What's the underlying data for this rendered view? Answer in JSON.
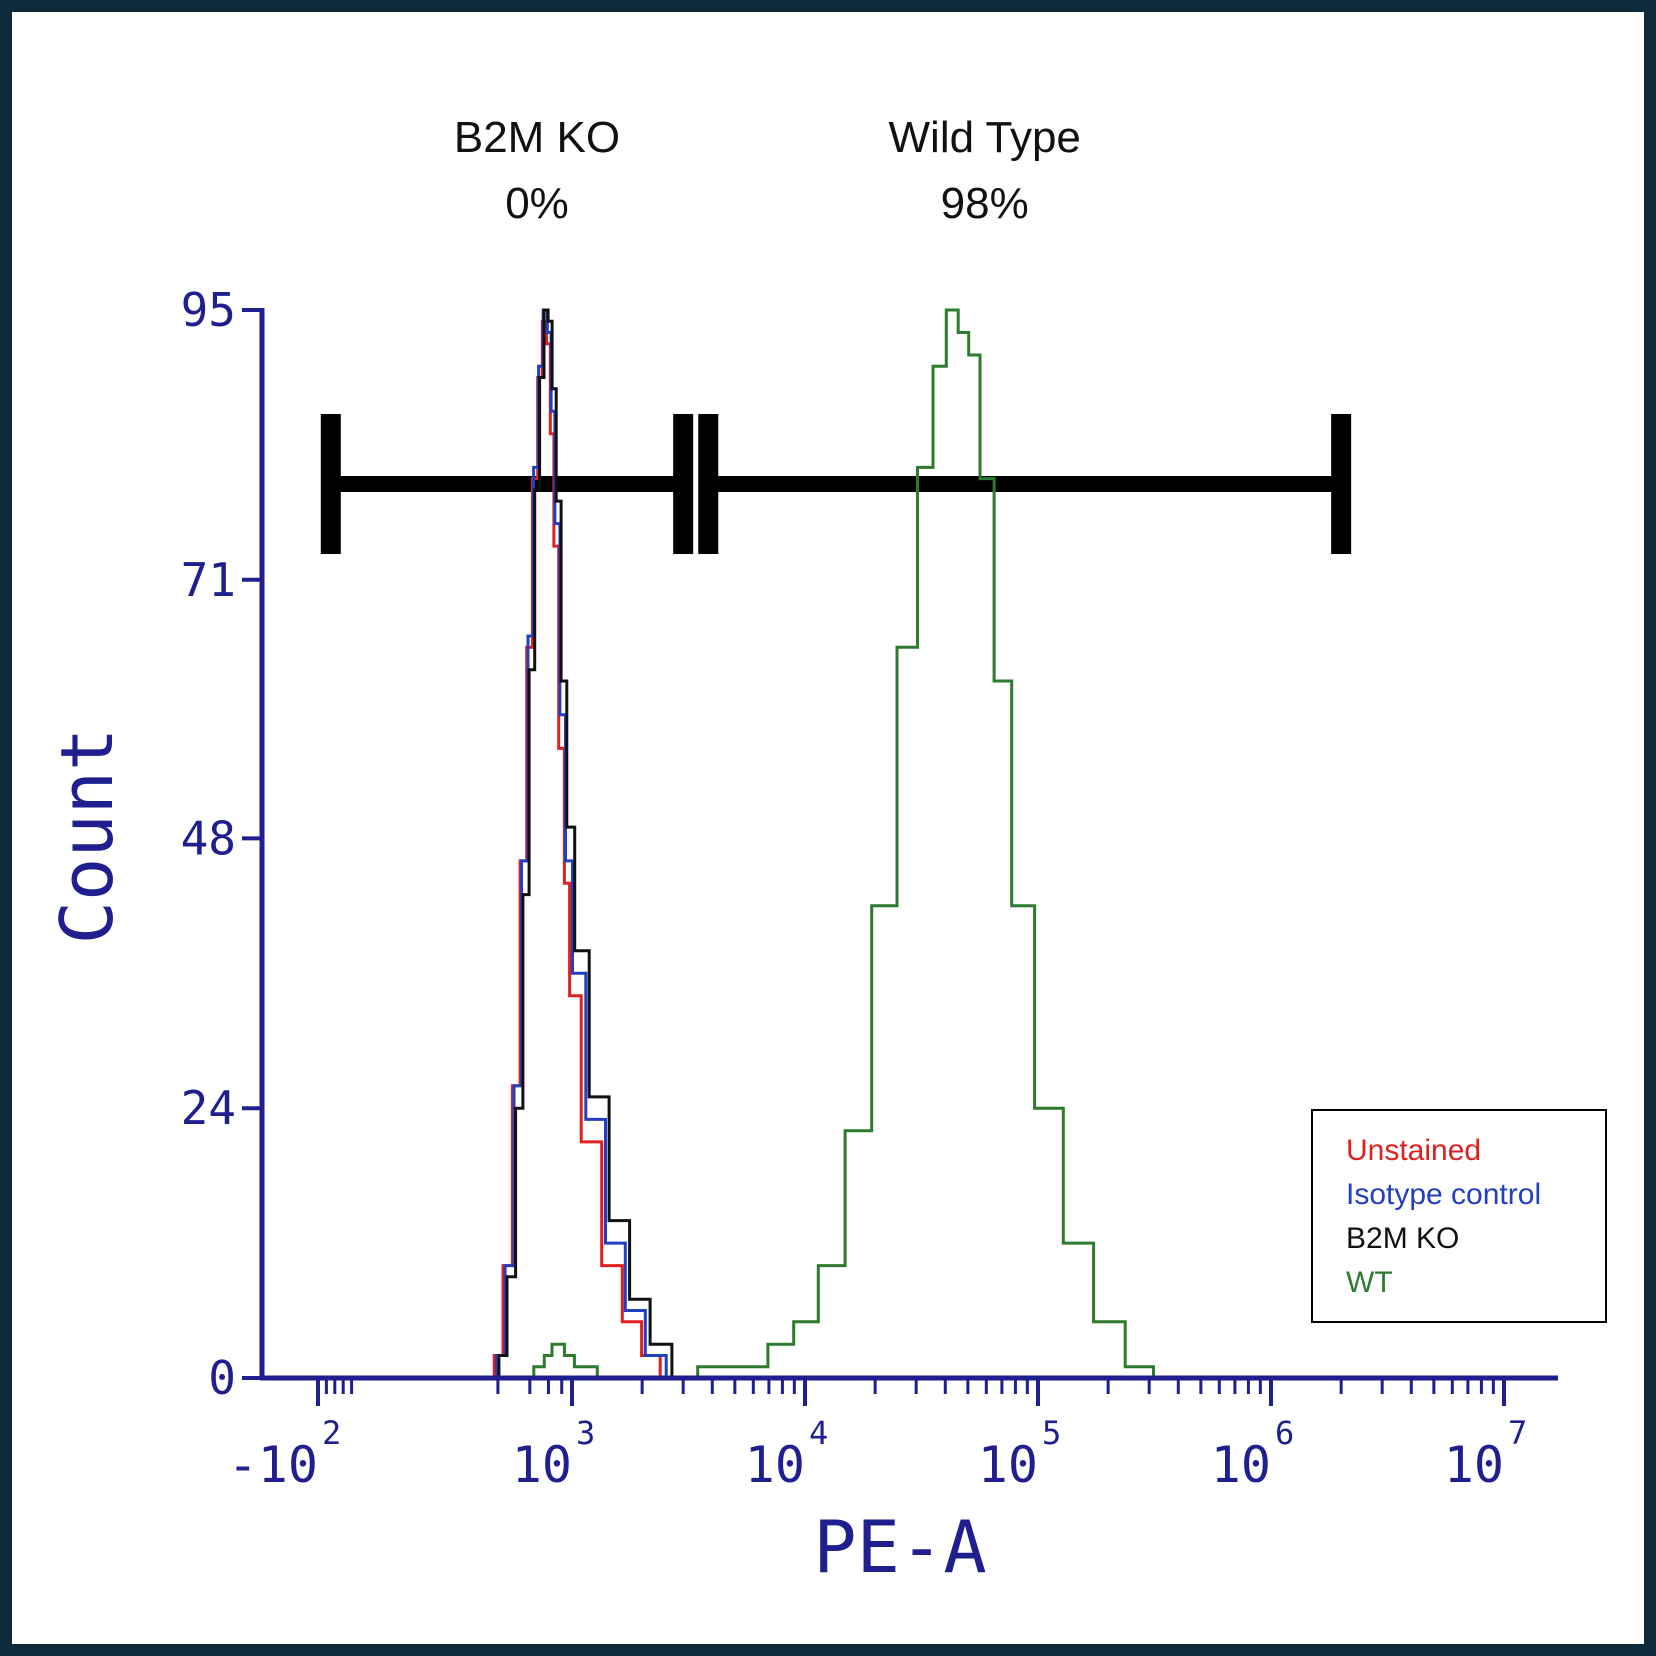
{
  "chart_data": {
    "type": "histogram",
    "xlabel": "PE-A",
    "ylabel": "Count",
    "x_scale": "biexponential (log)",
    "ylim": [
      0,
      95
    ],
    "y_ticks": [
      {
        "value": 0,
        "label": "0"
      },
      {
        "value": 24,
        "label": "24"
      },
      {
        "value": 48,
        "label": "48"
      },
      {
        "value": 71,
        "label": "71"
      },
      {
        "value": 95,
        "label": "95"
      }
    ],
    "x_ticks": [
      {
        "base": "-10",
        "exp": "2",
        "value": -100
      },
      {
        "base": "10",
        "exp": "3",
        "value": 1000
      },
      {
        "base": "10",
        "exp": "4",
        "value": 10000
      },
      {
        "base": "10",
        "exp": "5",
        "value": 100000
      },
      {
        "base": "10",
        "exp": "6",
        "value": 1000000
      },
      {
        "base": "10",
        "exp": "7",
        "value": 10000000
      }
    ],
    "gates": [
      {
        "name": "B2M KO",
        "percent": "0%",
        "range": [
          -60,
          3000
        ]
      },
      {
        "name": "Wild Type",
        "percent": "98%",
        "range": [
          4000,
          2000000
        ]
      }
    ],
    "legend": {
      "placement": "bottom-right"
    },
    "series": [
      {
        "name": "Unstained",
        "color": "#e02020",
        "x": [
          170,
          200,
          250,
          300,
          350,
          400,
          450,
          500,
          550,
          600,
          650,
          700,
          800,
          900,
          1000,
          1200,
          1500,
          1800,
          2200,
          2600
        ],
        "y": [
          0,
          2,
          10,
          26,
          46,
          65,
          80,
          89,
          94,
          92,
          84,
          74,
          56,
          44,
          34,
          21,
          10,
          5,
          2,
          0
        ]
      },
      {
        "name": "Isotype control",
        "color": "#2040c0",
        "x": [
          180,
          210,
          260,
          310,
          360,
          410,
          460,
          510,
          560,
          610,
          660,
          720,
          820,
          920,
          1050,
          1250,
          1550,
          1850,
          2300,
          2800
        ],
        "y": [
          0,
          2,
          10,
          26,
          46,
          66,
          81,
          90,
          95,
          93,
          86,
          76,
          59,
          46,
          36,
          23,
          12,
          6,
          2,
          0
        ]
      },
      {
        "name": "B2M KO",
        "color": "#111111",
        "x": [
          190,
          220,
          270,
          320,
          370,
          420,
          470,
          520,
          570,
          620,
          680,
          740,
          840,
          950,
          1080,
          1300,
          1600,
          1950,
          2400,
          3000
        ],
        "y": [
          0,
          2,
          9,
          24,
          43,
          63,
          79,
          89,
          95,
          94,
          88,
          78,
          62,
          49,
          38,
          25,
          14,
          7,
          3,
          0
        ]
      },
      {
        "name": "WT",
        "color": "#2e7a2e",
        "x": [
          380,
          500,
          600,
          700,
          800,
          900,
          1100,
          1500,
          3000,
          4000,
          6000,
          8000,
          10000,
          13000,
          17000,
          22000,
          28000,
          33000,
          38000,
          43000,
          48000,
          53000,
          60000,
          70000,
          85000,
          110000,
          150000,
          200000,
          280000,
          350000
        ],
        "y": [
          0,
          1,
          2,
          3,
          3,
          2,
          1,
          0,
          0,
          1,
          1,
          3,
          5,
          10,
          22,
          42,
          65,
          81,
          90,
          95,
          93,
          91,
          80,
          62,
          42,
          24,
          12,
          5,
          1,
          0
        ]
      }
    ]
  }
}
